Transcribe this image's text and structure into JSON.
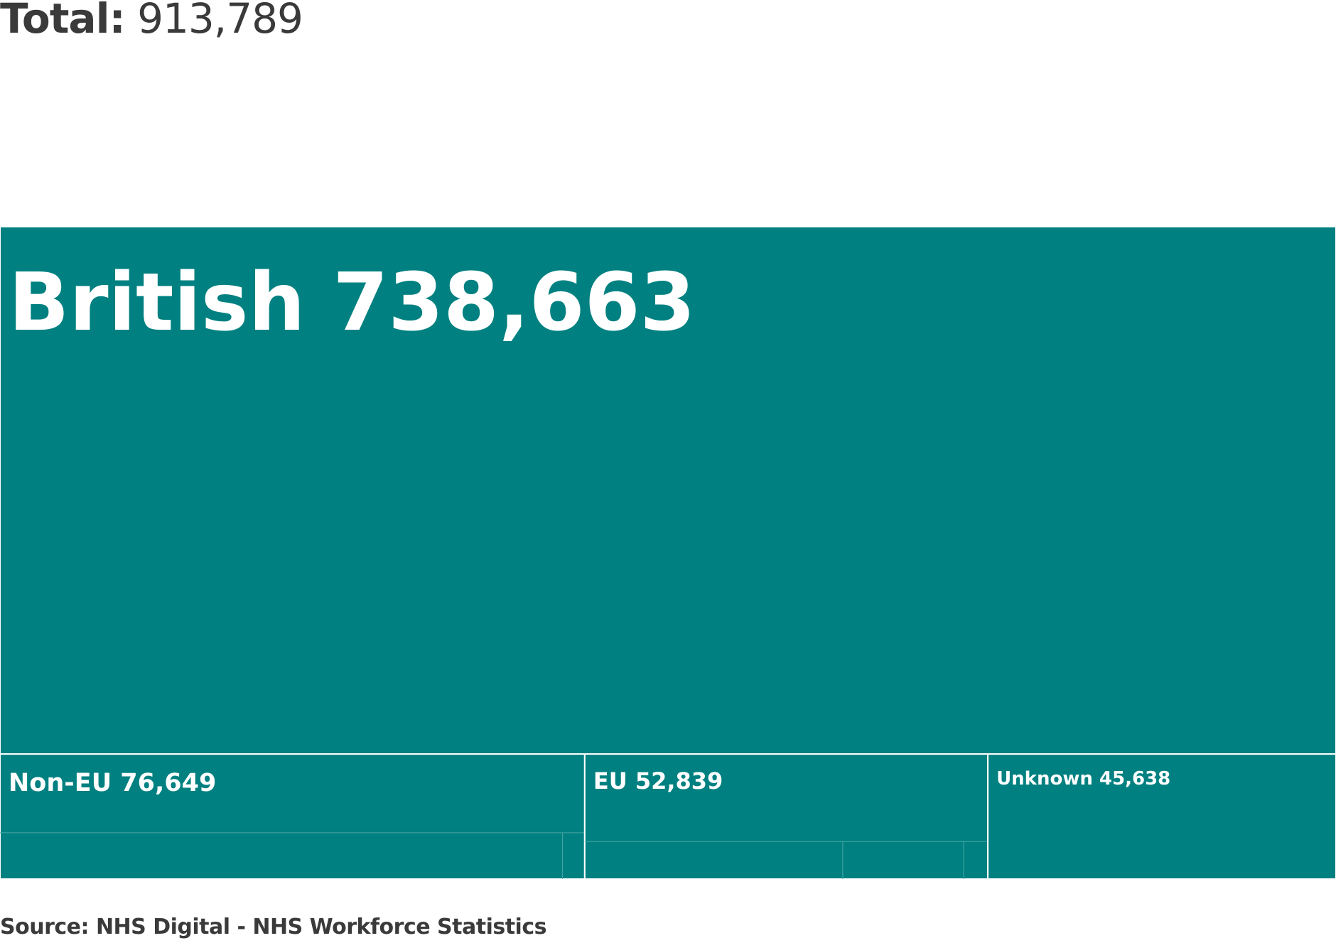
{
  "total": {
    "label": "Total:",
    "value": "913,789"
  },
  "chart_data": {
    "type": "treemap",
    "total": 913789,
    "colors": {
      "fill": "#008080",
      "border": "#ffffff",
      "sub_border": "#4aa6a6",
      "label": "#ffffff"
    },
    "nodes": [
      {
        "name": "British",
        "value": 738663,
        "label": "British 738,663"
      },
      {
        "name": "Non-EU",
        "value": 76649,
        "label": "Non-EU 76,649"
      },
      {
        "name": "EU",
        "value": 52839,
        "label": "EU 52,839"
      },
      {
        "name": "Unknown",
        "value": 45638,
        "label": "Unknown 45,638"
      }
    ]
  },
  "source": "Source: NHS Digital - NHS Workforce Statistics"
}
